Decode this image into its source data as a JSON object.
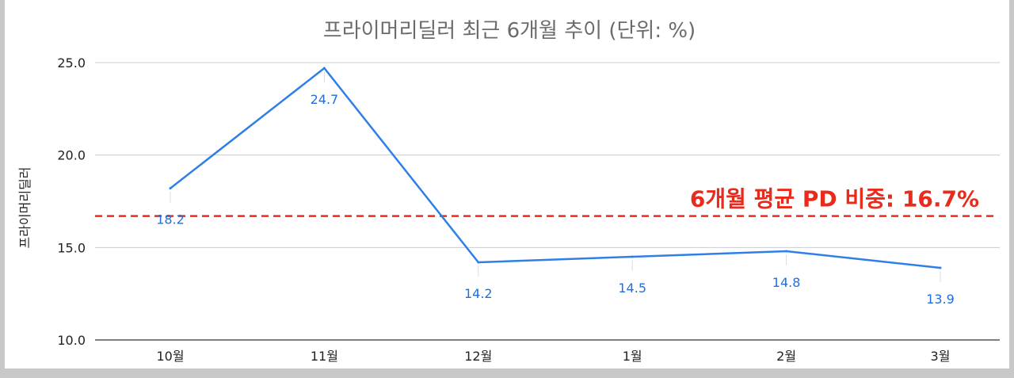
{
  "chart_data": {
    "type": "line",
    "title": "프라이머리딜러 최근 6개월 추이 (단위: %)",
    "ylabel": "프라이머리딜러",
    "xlabel": "",
    "categories": [
      "10월",
      "11월",
      "12월",
      "1월",
      "2월",
      "3월"
    ],
    "series": [
      {
        "values": [
          18.2,
          24.7,
          14.2,
          14.5,
          14.8,
          13.9
        ]
      }
    ],
    "data_labels": [
      "18.2",
      "24.7",
      "14.2",
      "14.5",
      "14.8",
      "13.9"
    ],
    "yticks": [
      "10.0",
      "15.0",
      "20.0",
      "25.0"
    ],
    "ylim": [
      10,
      25
    ],
    "grid": true,
    "average_line": {
      "value": 16.7,
      "label": "6개월 평균 PD 비중: 16.7%",
      "style": "dashed"
    },
    "colors": {
      "series": "#2f7fe6",
      "average": "#ea2a1a",
      "grid": "#cccccc",
      "title": "#6b6b6b"
    }
  }
}
